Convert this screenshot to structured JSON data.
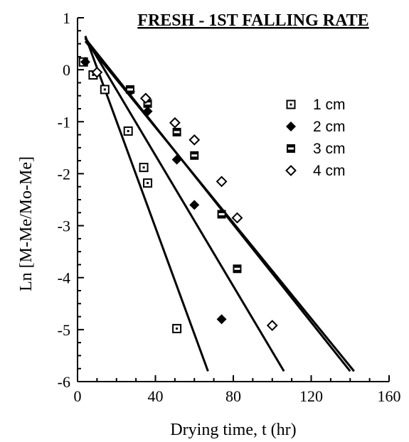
{
  "chart_data": {
    "type": "scatter",
    "title": "FRESH - 1ST FALLING RATE",
    "xlabel": "Drying time, t (hr)",
    "ylabel": "Ln [M-Me/Mo-Me]",
    "xlim": [
      0,
      160
    ],
    "ylim": [
      -6,
      1
    ],
    "x_ticks": [
      0,
      40,
      80,
      120,
      160
    ],
    "y_ticks": [
      1,
      0,
      -1,
      -2,
      -3,
      -4,
      -5,
      -6
    ],
    "grid": false,
    "legend_position": "right",
    "series": [
      {
        "name": "1 cm",
        "marker": "square-dot",
        "points": [
          [
            3,
            0.15
          ],
          [
            8,
            -0.1
          ],
          [
            14,
            -0.38
          ],
          [
            26,
            -1.18
          ],
          [
            34,
            -1.88
          ],
          [
            36,
            -2.18
          ],
          [
            51,
            -4.98
          ]
        ],
        "fit_line": [
          [
            4,
            0.65
          ],
          [
            67,
            -5.8
          ]
        ]
      },
      {
        "name": "2 cm",
        "marker": "diamond-filled",
        "points": [
          [
            4,
            0.15
          ],
          [
            10,
            -0.05
          ],
          [
            27,
            -0.42
          ],
          [
            36,
            -0.8
          ],
          [
            51,
            -1.73
          ],
          [
            60,
            -2.6
          ],
          [
            74,
            -4.8
          ]
        ],
        "fit_line": [
          [
            4,
            0.62
          ],
          [
            106,
            -5.8
          ]
        ]
      },
      {
        "name": "3 cm",
        "marker": "square-center",
        "points": [
          [
            27,
            -0.38
          ],
          [
            36,
            -0.65
          ],
          [
            51,
            -1.2
          ],
          [
            60,
            -1.65
          ],
          [
            74,
            -2.78
          ],
          [
            82,
            -3.83
          ]
        ],
        "fit_line": [
          [
            4,
            0.6
          ],
          [
            140,
            -5.8
          ]
        ]
      },
      {
        "name": "4 cm",
        "marker": "diamond-open",
        "points": [
          [
            10,
            -0.05
          ],
          [
            35,
            -0.55
          ],
          [
            50,
            -1.02
          ],
          [
            60,
            -1.35
          ],
          [
            74,
            -2.15
          ],
          [
            82,
            -2.85
          ],
          [
            100,
            -4.92
          ]
        ],
        "fit_line": [
          [
            4,
            0.55
          ],
          [
            142,
            -5.8
          ]
        ]
      }
    ]
  }
}
